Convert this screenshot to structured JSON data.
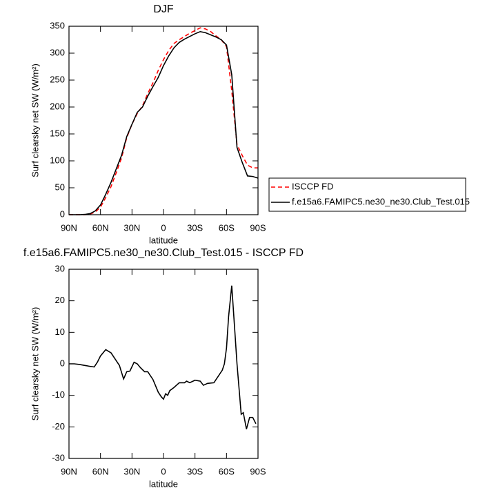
{
  "chart_data": [
    {
      "type": "line",
      "title": "DJF",
      "xlabel": "latitude",
      "ylabel": "Surf clearsky net SW (W/m²)",
      "x": [
        90,
        85,
        80,
        75,
        70,
        65,
        60,
        55,
        50,
        45,
        40,
        35,
        30,
        25,
        20,
        15,
        10,
        5,
        0,
        -5,
        -10,
        -15,
        -20,
        -25,
        -30,
        -35,
        -40,
        -45,
        -50,
        -55,
        -60,
        -65,
        -70,
        -75,
        -80,
        -85,
        -90
      ],
      "series": [
        {
          "name": "ISCCP FD",
          "color": "#ff0000",
          "line_style": "dashed",
          "values": [
            0,
            0,
            0,
            0,
            1,
            5,
            14,
            32,
            52,
            78,
            105,
            143,
            168,
            188,
            202,
            225,
            245,
            268,
            288,
            305,
            318,
            325,
            331,
            337,
            342,
            347,
            345,
            340,
            332,
            325,
            312,
            230,
            130,
            110,
            92,
            87,
            87
          ]
        },
        {
          "name": "f.e15a6.FAMIPC5.ne30_ne30.Club_Test.015",
          "color": "#000000",
          "line_style": "solid",
          "values": [
            0,
            0,
            0,
            0.5,
            2,
            7,
            18,
            38,
            60,
            85,
            110,
            145,
            168,
            190,
            200,
            220,
            238,
            255,
            277,
            295,
            310,
            320,
            326,
            331,
            336,
            340,
            338,
            334,
            330,
            325,
            315,
            260,
            125,
            97,
            72,
            71,
            68
          ]
        }
      ],
      "xlim": [
        90,
        -90
      ],
      "xticks": [
        {
          "value": 90,
          "label": "90N"
        },
        {
          "value": 60,
          "label": "60N"
        },
        {
          "value": 30,
          "label": "30N"
        },
        0,
        {
          "value": -30,
          "label": "30S"
        },
        {
          "value": -60,
          "label": "60S"
        },
        {
          "value": -90,
          "label": "90S"
        }
      ],
      "ylim": [
        0,
        350
      ],
      "yticks": [
        0,
        50,
        100,
        150,
        200,
        250,
        300,
        350
      ],
      "legend": "outside-right"
    },
    {
      "type": "line",
      "title": "f.e15a6.FAMIPC5.ne30_ne30.Club_Test.015 - ISCCP FD",
      "xlabel": "latitude",
      "ylabel": "Surf clearsky net SW (W/m²)",
      "x": [
        90,
        85,
        80,
        75,
        70,
        66,
        63,
        60,
        55,
        50,
        45,
        42,
        38,
        35,
        32,
        28,
        25,
        22,
        18,
        15,
        10,
        5,
        2,
        0,
        -2,
        -4,
        -6,
        -10,
        -15,
        -20,
        -22,
        -25,
        -30,
        -35,
        -38,
        -42,
        -48,
        -52,
        -56,
        -58,
        -60,
        -62,
        -65,
        -68,
        -70,
        -74,
        -76,
        -79,
        -82,
        -85,
        -88
      ],
      "series": [
        {
          "color": "#000000",
          "line_style": "solid",
          "values": [
            0,
            0,
            -0.2,
            -0.5,
            -0.8,
            -1,
            0.5,
            2.5,
            4.5,
            3.5,
            1,
            -0.5,
            -4.8,
            -2.5,
            -2.3,
            0.5,
            0,
            -1.2,
            -2.5,
            -2.5,
            -5,
            -9,
            -10.5,
            -11.2,
            -9.5,
            -10,
            -8.5,
            -7.5,
            -6,
            -6,
            -5.5,
            -6,
            -5.2,
            -5.5,
            -6.8,
            -6.2,
            -6,
            -4,
            -2,
            0,
            5,
            15,
            24.8,
            10,
            0,
            -16,
            -15.5,
            -20.7,
            -17,
            -17,
            -19
          ]
        }
      ],
      "xlim": [
        90,
        -90
      ],
      "xticks": [
        {
          "value": 90,
          "label": "90N"
        },
        {
          "value": 60,
          "label": "60N"
        },
        {
          "value": 30,
          "label": "30N"
        },
        0,
        {
          "value": -30,
          "label": "30S"
        },
        {
          "value": -60,
          "label": "60S"
        },
        {
          "value": -90,
          "label": "90S"
        }
      ],
      "ylim": [
        -30,
        30
      ],
      "yticks": [
        -30,
        -20,
        -10,
        0,
        10,
        20,
        30
      ]
    }
  ]
}
